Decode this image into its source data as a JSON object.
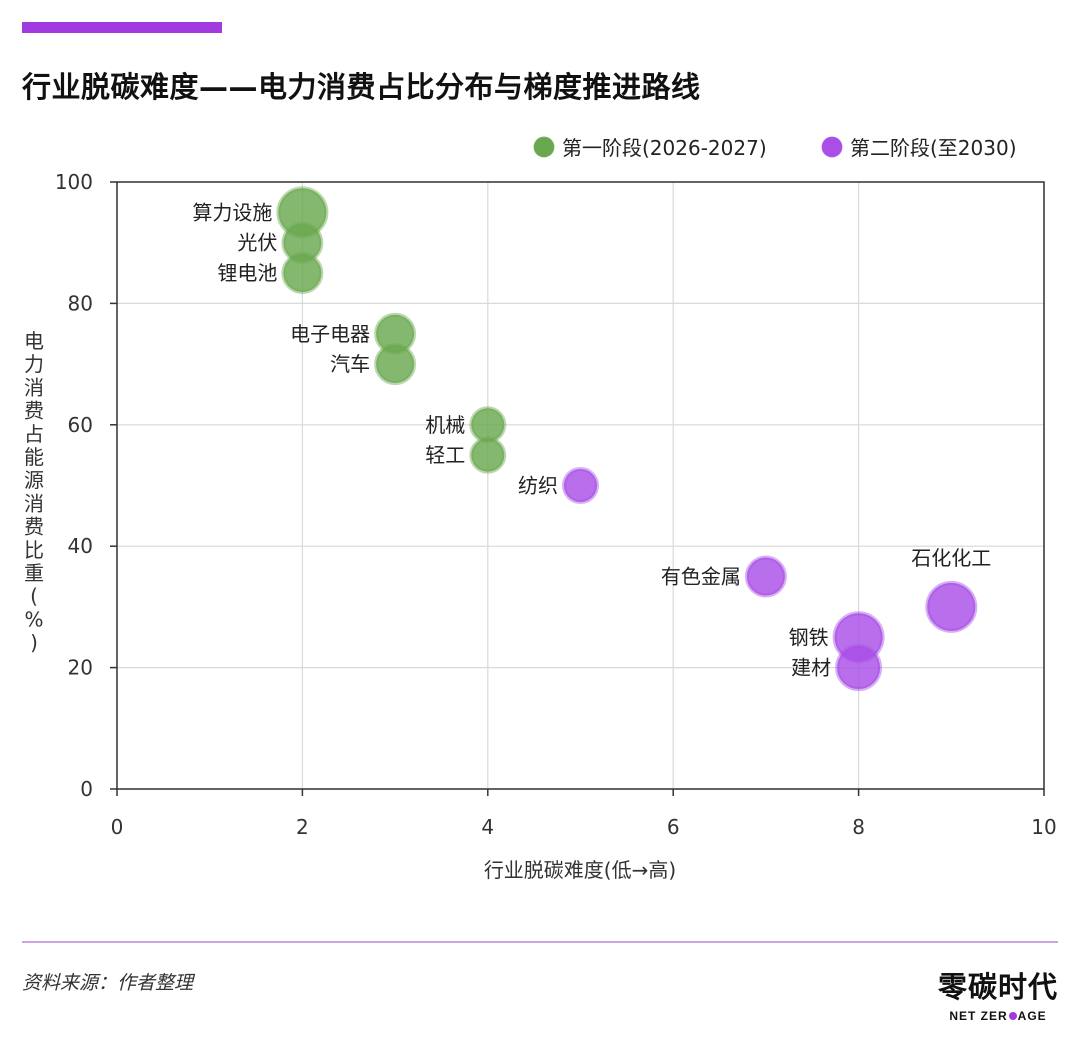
{
  "title": "行业脱碳难度——电力消费占比分布与梯度推进路线",
  "colors": {
    "accent": "#a13be0",
    "phase1": "#6aa84f",
    "phase2": "#a94ee6",
    "divider": "#c9a5e6"
  },
  "chart_data": {
    "type": "scatter",
    "xlabel": "行业脱碳难度(低→高)",
    "ylabel": "电力消费占能源消费比重(%)",
    "xlim": [
      0,
      10
    ],
    "ylim": [
      0,
      100
    ],
    "xticks": [
      "0",
      "2",
      "4",
      "6",
      "8",
      "10"
    ],
    "yticks": [
      "0",
      "20",
      "40",
      "60",
      "80",
      "100"
    ],
    "grid": true,
    "legend_position": "top-right",
    "series": [
      {
        "name": "第一阶段(2026-2027)",
        "color": "#6aa84f",
        "points": [
          {
            "label": "算力设施",
            "x": 2,
            "y": 95,
            "size": 3
          },
          {
            "label": "光伏",
            "x": 2,
            "y": 90,
            "size": 2
          },
          {
            "label": "锂电池",
            "x": 2,
            "y": 85,
            "size": 2
          },
          {
            "label": "电子电器",
            "x": 3,
            "y": 75,
            "size": 2
          },
          {
            "label": "汽车",
            "x": 3,
            "y": 70,
            "size": 2
          },
          {
            "label": "机械",
            "x": 4,
            "y": 60,
            "size": 1.5
          },
          {
            "label": "轻工",
            "x": 4,
            "y": 55,
            "size": 1.5
          }
        ]
      },
      {
        "name": "第二阶段(至2030)",
        "color": "#a94ee6",
        "points": [
          {
            "label": "纺织",
            "x": 5,
            "y": 50,
            "size": 1.5
          },
          {
            "label": "有色金属",
            "x": 7,
            "y": 35,
            "size": 2
          },
          {
            "label": "钢铁",
            "x": 8,
            "y": 25,
            "size": 3
          },
          {
            "label": "建材",
            "x": 8,
            "y": 20,
            "size": 2.5
          },
          {
            "label": "石化化工",
            "x": 9,
            "y": 30,
            "size": 3
          }
        ]
      }
    ]
  },
  "footer": {
    "source": "资料来源：作者整理",
    "logo_cn": "零碳时代",
    "logo_en_left": "NET ZER",
    "logo_en_right": "AGE"
  }
}
